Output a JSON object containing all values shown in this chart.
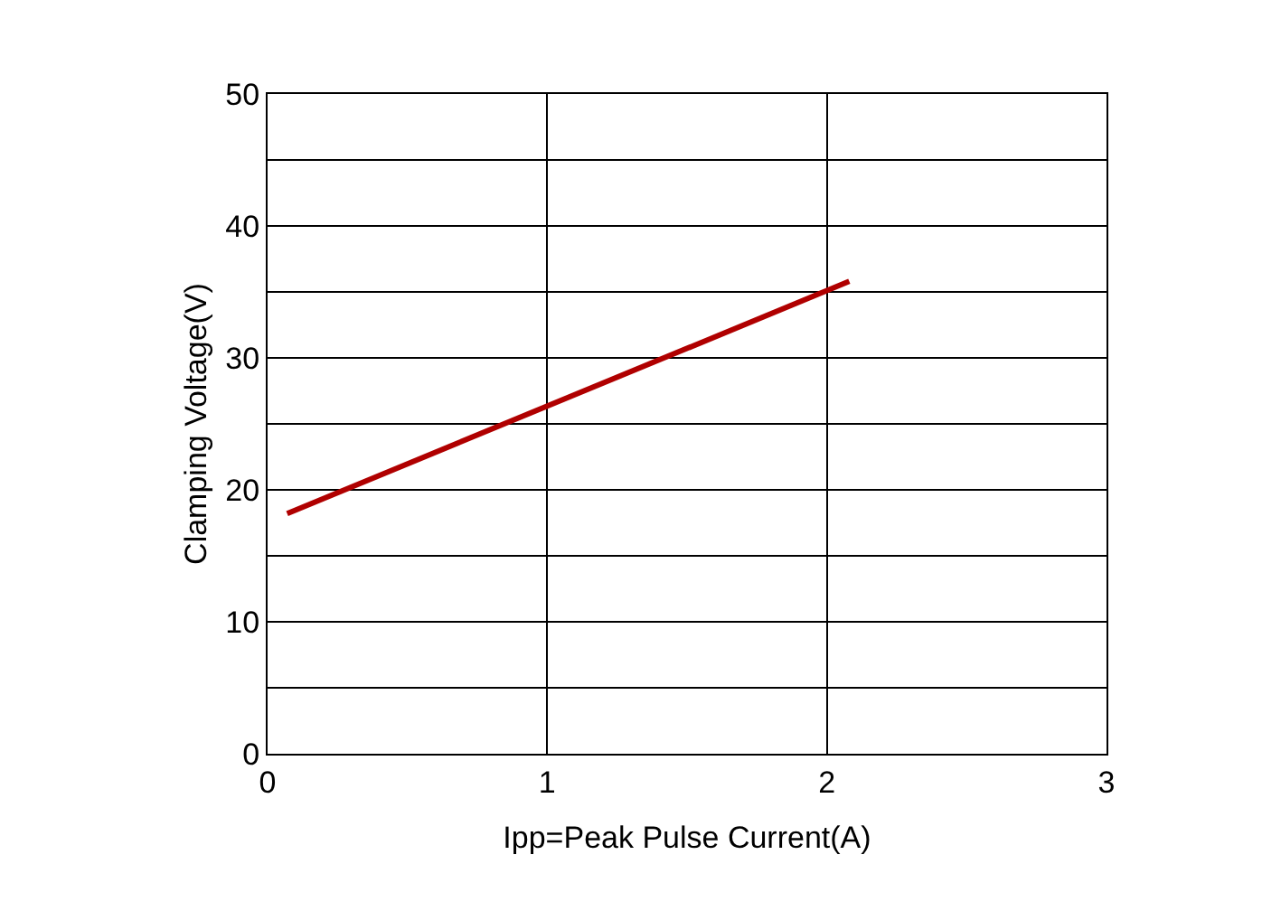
{
  "chart_data": {
    "type": "line",
    "xlabel": "Ipp=Peak Pulse Current(A)",
    "ylabel": "Clamping Voltage(V)",
    "x": [
      0.07,
      2.08
    ],
    "series": [
      {
        "color": "#b00000",
        "values": [
          18.2,
          35.8
        ]
      }
    ],
    "xlim": [
      0,
      3
    ],
    "xticks": [
      0,
      1,
      2,
      3
    ],
    "ylim": [
      0,
      50
    ],
    "yticks": [
      0,
      {
        "value": 5,
        "label": null
      },
      10,
      {
        "value": 15,
        "label": null
      },
      20,
      {
        "value": 25,
        "label": null
      },
      30,
      {
        "value": 35,
        "label": null
      },
      40,
      {
        "value": 45,
        "label": null
      },
      50
    ],
    "grid": true,
    "legend": false,
    "marker": "none",
    "line_style": "solid"
  }
}
